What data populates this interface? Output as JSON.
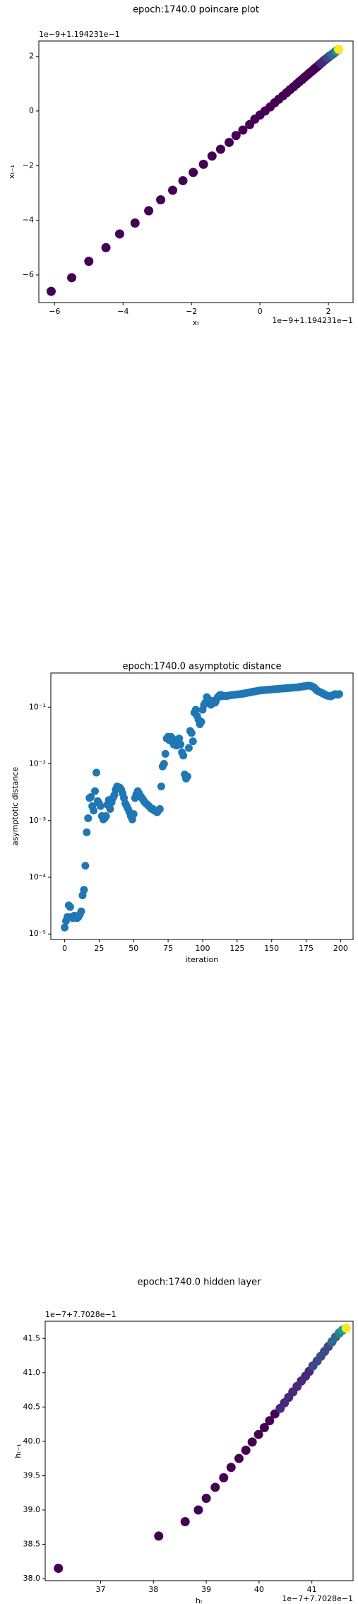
{
  "chart_data": [
    {
      "type": "scatter",
      "title": "epoch:1740.0 poincare plot",
      "xlabel": "xₜ",
      "ylabel": "xₜ₋₁",
      "x_offset_label": "1e−9+1.194231e−1",
      "y_offset_label": "1e−9+1.194231e−1",
      "xlim": [
        -6.46,
        2.72
      ],
      "ylim": [
        -7.01,
        2.56
      ],
      "xticks": [
        {
          "value": -6,
          "label": "−6"
        },
        {
          "value": -4,
          "label": "−4"
        },
        {
          "value": -2,
          "label": "−2"
        },
        0,
        2
      ],
      "yticks": [
        {
          "value": -6,
          "label": "−6"
        },
        {
          "value": -4,
          "label": "−4"
        },
        {
          "value": -2,
          "label": "−2"
        },
        0,
        2
      ],
      "x": [
        -6.1,
        -5.5,
        -5.0,
        -4.5,
        -4.1,
        -3.65,
        -3.25,
        -2.9,
        -2.55,
        -2.25,
        -1.95,
        -1.65,
        -1.4,
        -1.15,
        -0.9,
        -0.7,
        -0.5,
        -0.3,
        -0.15,
        0,
        0.15,
        0.3,
        0.43,
        0.55,
        0.67,
        0.78,
        0.88,
        0.98,
        1.07,
        1.15,
        1.23,
        1.3,
        1.37,
        1.43,
        1.49,
        1.55,
        1.6,
        1.65,
        1.7,
        1.74,
        1.78,
        1.82,
        1.85,
        1.88,
        1.91,
        1.94,
        1.97,
        2.0,
        2.03,
        2.06,
        2.1,
        2.14,
        2.18,
        2.22,
        2.26,
        2.3
      ],
      "values": [
        -6.6,
        -6.1,
        -5.5,
        -5.0,
        -4.5,
        -4.1,
        -3.65,
        -3.25,
        -2.9,
        -2.55,
        -2.25,
        -1.95,
        -1.65,
        -1.4,
        -1.15,
        -0.9,
        -0.7,
        -0.5,
        -0.3,
        -0.15,
        0,
        0.15,
        0.3,
        0.43,
        0.55,
        0.67,
        0.78,
        0.88,
        0.98,
        1.07,
        1.15,
        1.23,
        1.3,
        1.37,
        1.43,
        1.49,
        1.55,
        1.6,
        1.65,
        1.7,
        1.74,
        1.78,
        1.82,
        1.85,
        1.88,
        1.91,
        1.94,
        1.97,
        2.0,
        2.03,
        2.06,
        2.1,
        2.14,
        2.18,
        2.22,
        2.26
      ],
      "colors": [
        "#440154",
        "#440154",
        "#440154",
        "#440154",
        "#440154",
        "#440154",
        "#440154",
        "#440154",
        "#440154",
        "#440154",
        "#440154",
        "#440154",
        "#440154",
        "#440154",
        "#440154",
        "#440154",
        "#440154",
        "#440154",
        "#440154",
        "#440154",
        "#440154",
        "#440154",
        "#440154",
        "#440154",
        "#440154",
        "#440154",
        "#440154",
        "#440154",
        "#440154",
        "#440154",
        "#440154",
        "#440154",
        "#440154",
        "#440154",
        "#440154",
        "#440154",
        "#440154",
        "#440154",
        "#440154",
        "#440154",
        "#482878",
        "#482878",
        "#482878",
        "#482878",
        "#482878",
        "#482878",
        "#3e4989",
        "#3e4989",
        "#3e4989",
        "#3e4989",
        "#31688e",
        "#31688e",
        "#31688e",
        "#26828e",
        "#1f9e89",
        "#fde725"
      ]
    },
    {
      "type": "scatter",
      "title": "epoch:1740.0 asymptotic distance",
      "xlabel": "iteration",
      "ylabel": "asymptotic distance",
      "yscale": "log",
      "color": "#1f77b4",
      "xlim": [
        -10,
        209
      ],
      "ylim": [
        8e-06,
        0.4
      ],
      "xticks": [
        0,
        25,
        50,
        75,
        100,
        125,
        150,
        175,
        200
      ],
      "yticks": [
        {
          "value": 1e-05,
          "label": "10⁻⁵"
        },
        {
          "value": 0.0001,
          "label": "10⁻⁴"
        },
        {
          "value": 0.001,
          "label": "10⁻³"
        },
        {
          "value": 0.01,
          "label": "10⁻²"
        },
        {
          "value": 0.1,
          "label": "10⁻¹"
        }
      ],
      "x": [
        0,
        1,
        2,
        3,
        4,
        5,
        6,
        7,
        8,
        9,
        10,
        11,
        12,
        13,
        14,
        15,
        16,
        17,
        18,
        19,
        20,
        21,
        22,
        23,
        24,
        25,
        26,
        27,
        28,
        29,
        30,
        31,
        32,
        33,
        34,
        35,
        36,
        37,
        38,
        39,
        40,
        41,
        42,
        43,
        44,
        45,
        46,
        47,
        48,
        49,
        50,
        51,
        52,
        53,
        54,
        55,
        56,
        57,
        58,
        59,
        60,
        61,
        62,
        63,
        64,
        65,
        66,
        67,
        68,
        69,
        70,
        71,
        72,
        73,
        74,
        75,
        76,
        77,
        78,
        79,
        80,
        81,
        82,
        83,
        84,
        85,
        86,
        87,
        88,
        89,
        90,
        91,
        92,
        93,
        94,
        95,
        96,
        97,
        98,
        99,
        100,
        101,
        102,
        103,
        104,
        105,
        106,
        107,
        108,
        109,
        110,
        111,
        112,
        113,
        114,
        115,
        116,
        117,
        118,
        119,
        120,
        121,
        122,
        123,
        124,
        125,
        126,
        127,
        128,
        129,
        130,
        131,
        132,
        133,
        134,
        135,
        136,
        137,
        138,
        139,
        140,
        141,
        142,
        143,
        144,
        145,
        146,
        147,
        148,
        149,
        150,
        151,
        152,
        153,
        154,
        155,
        156,
        157,
        158,
        159,
        160,
        161,
        162,
        163,
        164,
        165,
        166,
        167,
        168,
        169,
        170,
        171,
        172,
        173,
        174,
        175,
        176,
        177,
        178,
        179,
        180,
        181,
        182,
        183,
        184,
        185,
        186,
        187,
        188,
        189,
        190,
        191,
        192,
        193,
        194,
        195,
        196,
        197,
        198,
        199
      ],
      "values": [
        1.3e-05,
        1.7e-05,
        2e-05,
        3.2e-05,
        3e-05,
        2e-05,
        1.9e-05,
        2.1e-05,
        2e-05,
        1.9e-05,
        2e-05,
        2.2e-05,
        2.5e-05,
        4.8e-05,
        6e-05,
        0.00016,
        0.00062,
        0.0011,
        0.0025,
        0.0026,
        0.0018,
        0.0015,
        0.0033,
        0.007,
        0.0022,
        0.002,
        0.0018,
        0.0012,
        0.00105,
        0.0011,
        0.0012,
        0.0019,
        0.0023,
        0.0016,
        0.0021,
        0.0025,
        0.0028,
        0.0035,
        0.004,
        0.0039,
        0.0038,
        0.0035,
        0.003,
        0.0025,
        0.002,
        0.0018,
        0.0016,
        0.0014,
        0.0012,
        0.00105,
        0.0013,
        0.0025,
        0.0029,
        0.0033,
        0.003,
        0.0027,
        0.0025,
        0.0023,
        0.0021,
        0.002,
        0.0019,
        0.0018,
        0.0017,
        0.0016,
        0.0016,
        0.0015,
        0.0015,
        0.0014,
        0.0015,
        0.0016,
        0.004,
        0.009,
        0.01,
        0.015,
        0.028,
        0.03,
        0.026,
        0.03,
        0.028,
        0.022,
        0.026,
        0.021,
        0.025,
        0.028,
        0.022,
        0.016,
        0.014,
        0.0065,
        0.0055,
        0.006,
        0.019,
        0.038,
        0.035,
        0.025,
        0.08,
        0.09,
        0.07,
        0.06,
        0.05,
        0.055,
        0.09,
        0.11,
        0.12,
        0.15,
        0.14,
        0.12,
        0.11,
        0.125,
        0.13,
        0.12,
        0.135,
        0.15,
        0.16,
        0.165,
        0.155,
        0.16,
        0.158,
        0.156,
        0.158,
        0.16,
        0.162,
        0.163,
        0.164,
        0.165,
        0.166,
        0.167,
        0.168,
        0.17,
        0.171,
        0.172,
        0.174,
        0.176,
        0.178,
        0.18,
        0.182,
        0.184,
        0.186,
        0.188,
        0.19,
        0.192,
        0.194,
        0.196,
        0.197,
        0.198,
        0.199,
        0.2,
        0.201,
        0.202,
        0.203,
        0.204,
        0.205,
        0.206,
        0.207,
        0.208,
        0.209,
        0.21,
        0.211,
        0.212,
        0.213,
        0.214,
        0.215,
        0.216,
        0.217,
        0.218,
        0.219,
        0.22,
        0.221,
        0.222,
        0.223,
        0.224,
        0.226,
        0.228,
        0.23,
        0.232,
        0.234,
        0.236,
        0.238,
        0.24,
        0.238,
        0.232,
        0.228,
        0.22,
        0.205,
        0.195,
        0.19,
        0.185,
        0.18,
        0.175,
        0.17,
        0.165,
        0.16,
        0.158,
        0.156,
        0.155,
        0.16,
        0.165,
        0.17,
        0.168,
        0.165,
        0.17
      ]
    },
    {
      "type": "scatter",
      "title": "epoch:1740.0 hidden layer",
      "xlabel": "hₜ",
      "ylabel": "hₜ₋₁",
      "x_offset_label": "1e−7+7.7028e−1",
      "y_offset_label": "1e−7+7.7028e−1",
      "xlim": [
        35.95,
        41.78
      ],
      "ylim": [
        37.97,
        41.75
      ],
      "xticks": [
        37,
        38,
        39,
        40,
        41
      ],
      "yticks": [
        {
          "value": 38,
          "label": "38.0"
        },
        {
          "value": 38.5,
          "label": "38.5"
        },
        {
          "value": 39,
          "label": "39.0"
        },
        {
          "value": 39.5,
          "label": "39.5"
        },
        {
          "value": 40,
          "label": "40.0"
        },
        {
          "value": 40.5,
          "label": "40.5"
        },
        {
          "value": 41,
          "label": "41.0"
        },
        {
          "value": 41.5,
          "label": "41.5"
        }
      ],
      "x": [
        36.2,
        38.1,
        38.6,
        38.85,
        39.0,
        39.17,
        39.33,
        39.47,
        39.62,
        39.75,
        39.87,
        39.99,
        40.1,
        40.2,
        40.3,
        40.4,
        40.48,
        40.56,
        40.64,
        40.72,
        40.8,
        40.88,
        40.95,
        41.02,
        41.1,
        41.17,
        41.24,
        41.31,
        41.38,
        41.45,
        41.52,
        41.58,
        41.65
      ],
      "values": [
        38.15,
        38.62,
        38.83,
        39.0,
        39.17,
        39.33,
        39.47,
        39.62,
        39.75,
        39.87,
        39.99,
        40.1,
        40.2,
        40.3,
        40.4,
        40.48,
        40.56,
        40.64,
        40.72,
        40.8,
        40.88,
        40.95,
        41.02,
        41.1,
        41.17,
        41.24,
        41.31,
        41.38,
        41.45,
        41.52,
        41.58,
        41.62,
        41.65
      ],
      "colors": [
        "#440154",
        "#440154",
        "#440154",
        "#440154",
        "#440154",
        "#440154",
        "#440154",
        "#440154",
        "#440154",
        "#440154",
        "#440154",
        "#440154",
        "#440154",
        "#440154",
        "#440154",
        "#482878",
        "#482878",
        "#482878",
        "#482878",
        "#482878",
        "#482878",
        "#482878",
        "#482878",
        "#3e4989",
        "#3e4989",
        "#3e4989",
        "#3e4989",
        "#3e4989",
        "#31688e",
        "#31688e",
        "#26828e",
        "#1f9e89",
        "#fde725"
      ]
    }
  ]
}
